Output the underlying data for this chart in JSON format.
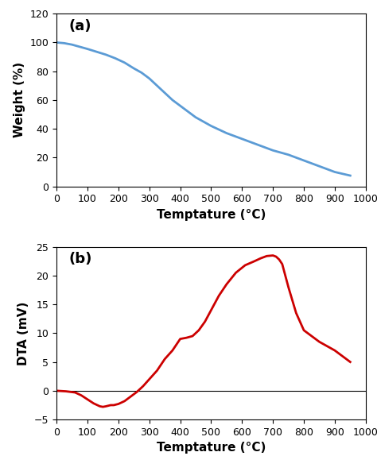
{
  "tga_x": [
    0,
    25,
    50,
    75,
    100,
    130,
    160,
    190,
    220,
    250,
    275,
    300,
    325,
    350,
    375,
    400,
    450,
    500,
    550,
    600,
    650,
    700,
    750,
    800,
    850,
    900,
    950
  ],
  "tga_y": [
    100,
    99.5,
    98.5,
    97,
    95.5,
    93.5,
    91.5,
    89,
    86,
    82,
    79,
    75,
    70,
    65,
    60,
    56,
    48,
    42,
    37,
    33,
    29,
    25,
    22,
    18,
    14,
    10,
    7.5
  ],
  "dta_x": [
    0,
    30,
    60,
    80,
    100,
    120,
    140,
    150,
    160,
    175,
    185,
    200,
    220,
    240,
    260,
    280,
    300,
    325,
    350,
    375,
    400,
    420,
    440,
    460,
    480,
    500,
    525,
    550,
    580,
    610,
    640,
    660,
    680,
    700,
    710,
    720,
    730,
    750,
    775,
    800,
    850,
    900,
    950
  ],
  "dta_y": [
    0,
    -0.1,
    -0.3,
    -0.8,
    -1.5,
    -2.2,
    -2.7,
    -2.8,
    -2.7,
    -2.5,
    -2.5,
    -2.3,
    -1.8,
    -1.0,
    -0.2,
    0.8,
    2.0,
    3.5,
    5.5,
    7.0,
    9.0,
    9.2,
    9.5,
    10.5,
    12.0,
    14.0,
    16.5,
    18.5,
    20.5,
    21.8,
    22.5,
    23.0,
    23.4,
    23.5,
    23.3,
    22.8,
    22.0,
    18.0,
    13.5,
    10.5,
    8.5,
    7.0,
    5.0
  ],
  "tga_color": "#5b9bd5",
  "dta_color": "#cc0000",
  "tga_ylabel": "Weight (%)",
  "dta_ylabel": "DTA (mV)",
  "xlabel": "Temptature (°C)",
  "tga_label": "(a)",
  "dta_label": "(b)",
  "tga_xlim": [
    0,
    1000
  ],
  "tga_ylim": [
    0,
    120
  ],
  "tga_xticks": [
    0,
    100,
    200,
    300,
    400,
    500,
    600,
    700,
    800,
    900,
    1000
  ],
  "tga_yticks": [
    0,
    20,
    40,
    60,
    80,
    100,
    120
  ],
  "dta_xlim": [
    0,
    1000
  ],
  "dta_ylim": [
    -5,
    25
  ],
  "dta_xticks": [
    0,
    100,
    200,
    300,
    400,
    500,
    600,
    700,
    800,
    900,
    1000
  ],
  "dta_yticks": [
    -5,
    0,
    5,
    10,
    15,
    20,
    25
  ],
  "bg_color": "#ffffff",
  "linewidth": 2.0,
  "tick_labelsize": 9,
  "label_fontsize": 11,
  "annot_fontsize": 13
}
